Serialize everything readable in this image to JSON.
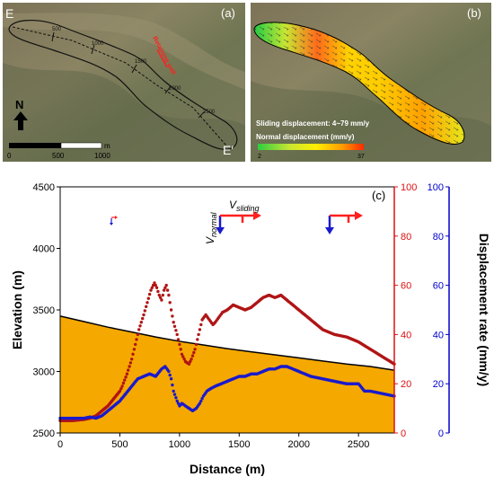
{
  "panel_a": {
    "tag": "(a)",
    "point_start": "E",
    "point_end": "E′",
    "north_label": "N",
    "scale_unit": "m",
    "scale_ticks": [
      "0",
      "500",
      "1000"
    ],
    "profile_ticks": [
      "500",
      "1000",
      "1500",
      "2000",
      "2500"
    ],
    "wall_label": "Retaining wall"
  },
  "panel_b": {
    "tag": "(b)",
    "sliding_text": "Sliding displacement: 4~79 mm/y",
    "normal_title": "Normal displacement (mm/y)",
    "colorbar_min": "2",
    "colorbar_max": "37",
    "colorbar_colors": [
      "#2ecc40",
      "#c8e632",
      "#ffee00",
      "#ff9a00",
      "#ff2a00"
    ]
  },
  "panel_c": {
    "tag": "(c)",
    "v_normal_label": "V",
    "v_normal_sub": "normal",
    "v_sliding_label": "V",
    "v_sliding_sub": "sliding"
  },
  "chart_data": {
    "type": "line",
    "xlabel": "Distance (m)",
    "ylabel_left": "Elevation (m)",
    "ylabel_right": "Displacement rate (mm/y)",
    "xlim": [
      0,
      2800
    ],
    "ylim_left": [
      2500,
      4500
    ],
    "ylim_mid": [
      0,
      100
    ],
    "ylim_right": [
      0,
      100
    ],
    "xticks": [
      "0",
      "500",
      "1000",
      "1500",
      "2000",
      "2500"
    ],
    "yticks_left": [
      "2500",
      "3000",
      "3500",
      "4000",
      "4500"
    ],
    "yticks_mid": [
      "0",
      "20",
      "40",
      "60",
      "80",
      "100"
    ],
    "yticks_right": [
      "0",
      "20",
      "40",
      "60",
      "80",
      "100"
    ],
    "colors": {
      "elevation_fill": "#f5a800",
      "elevation_line": "#000000",
      "sliding": "#b01515",
      "normal": "#1a1acc",
      "axis_mid": "#dd1111",
      "axis_right": "#0000cc"
    },
    "elevation": {
      "x": [
        0,
        200,
        400,
        600,
        800,
        1000,
        1200,
        1400,
        1600,
        1800,
        2000,
        2200,
        2400,
        2600,
        2800
      ],
      "y": [
        3450,
        3405,
        3360,
        3320,
        3280,
        3245,
        3215,
        3185,
        3160,
        3135,
        3110,
        3085,
        3060,
        3040,
        3010
      ]
    },
    "series": [
      {
        "name": "Sliding displacement",
        "axis": "mid",
        "x": [
          0,
          100,
          200,
          250,
          300,
          350,
          400,
          450,
          500,
          520,
          560,
          600,
          630,
          660,
          700,
          730,
          760,
          790,
          810,
          830,
          850,
          870,
          890,
          910,
          930,
          950,
          980,
          1000,
          1020,
          1050,
          1080,
          1100,
          1130,
          1160,
          1190,
          1220,
          1250,
          1280,
          1300,
          1330,
          1360,
          1400,
          1450,
          1500,
          1550,
          1600,
          1650,
          1700,
          1750,
          1800,
          1850,
          1900,
          1950,
          2000,
          2050,
          2100,
          2150,
          2200,
          2300,
          2400,
          2500,
          2600,
          2700,
          2800
        ],
        "y": [
          5,
          5,
          5.5,
          6,
          7,
          9,
          11,
          14,
          17,
          19,
          24,
          30,
          36,
          42,
          48,
          53,
          58,
          61,
          59,
          56,
          54,
          58,
          60,
          56,
          50,
          45,
          40,
          36,
          32,
          29,
          28,
          30,
          34,
          40,
          46,
          48,
          46,
          44,
          45,
          47,
          49,
          50,
          52,
          51,
          50,
          51,
          53,
          55,
          56,
          55,
          56,
          54,
          52,
          50,
          48,
          46,
          44,
          42,
          40,
          39,
          37,
          34,
          31,
          28
        ]
      },
      {
        "name": "Normal displacement",
        "axis": "right",
        "x": [
          0,
          100,
          200,
          250,
          300,
          350,
          400,
          450,
          500,
          550,
          600,
          650,
          700,
          750,
          800,
          850,
          880,
          910,
          930,
          950,
          980,
          1000,
          1020,
          1050,
          1080,
          1110,
          1140,
          1170,
          1200,
          1230,
          1260,
          1300,
          1350,
          1400,
          1450,
          1500,
          1550,
          1600,
          1650,
          1700,
          1750,
          1800,
          1850,
          1900,
          1950,
          2000,
          2050,
          2100,
          2200,
          2300,
          2400,
          2500,
          2550,
          2600,
          2700,
          2800
        ],
        "y": [
          6,
          6,
          6,
          6.5,
          6,
          7,
          9,
          11,
          13,
          16,
          19,
          22,
          23,
          24,
          23,
          26,
          27,
          25,
          22,
          17,
          13,
          11,
          12,
          11,
          10,
          9,
          10,
          12,
          15,
          17,
          18,
          19,
          20,
          21,
          22,
          23,
          23,
          24,
          24,
          25,
          26,
          26,
          27,
          27,
          26,
          25,
          24,
          23,
          22,
          21,
          20,
          20,
          17,
          17,
          16,
          15
        ]
      }
    ]
  }
}
